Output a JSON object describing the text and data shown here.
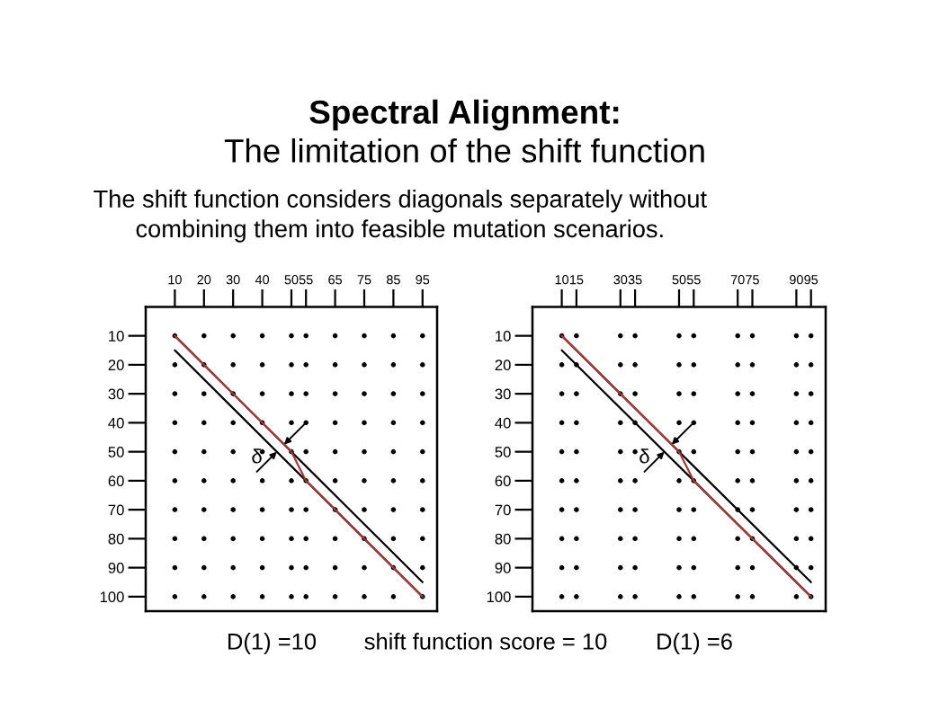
{
  "chart_data": [
    {
      "type": "scatter",
      "title": "Spectral Alignment:",
      "subtitle": "The limitation of the shift function",
      "annotations": [
        "The shift function considers diagonals separately without combining them into feasible mutation scenarios.",
        {
          "text": "δ",
          "x": 45,
          "y": 50
        },
        "D(1) =10",
        "shift function score = 10"
      ],
      "xlim": [
        0,
        100
      ],
      "xticks": [
        10,
        20,
        30,
        40,
        50,
        55,
        65,
        75,
        85,
        95
      ],
      "ylim": [
        105,
        0
      ],
      "yticks": [
        10,
        20,
        30,
        40,
        50,
        60,
        70,
        80,
        90,
        100
      ],
      "series": [
        {
          "color": "#000000",
          "marker": "circle",
          "x": [
            10,
            20,
            30,
            40,
            50,
            55,
            65,
            75,
            85,
            95,
            10,
            20,
            30,
            40,
            50,
            55,
            65,
            75,
            85,
            95,
            10,
            20,
            30,
            40,
            50,
            55,
            65,
            75,
            85,
            95,
            10,
            20,
            30,
            40,
            50,
            55,
            65,
            75,
            85,
            95,
            10,
            20,
            30,
            40,
            50,
            55,
            65,
            75,
            85,
            95,
            10,
            20,
            30,
            40,
            50,
            55,
            65,
            75,
            85,
            95,
            10,
            20,
            30,
            40,
            50,
            55,
            65,
            75,
            85,
            95,
            10,
            20,
            30,
            40,
            50,
            55,
            65,
            75,
            85,
            95,
            10,
            20,
            30,
            40,
            50,
            55,
            65,
            75,
            85,
            95,
            10,
            20,
            30,
            40,
            50,
            55,
            65,
            75,
            85,
            95
          ],
          "values": [
            10,
            10,
            10,
            10,
            10,
            10,
            10,
            10,
            10,
            10,
            20,
            20,
            20,
            20,
            20,
            20,
            20,
            20,
            20,
            20,
            30,
            30,
            30,
            30,
            30,
            30,
            30,
            30,
            30,
            30,
            40,
            40,
            40,
            40,
            40,
            40,
            40,
            40,
            40,
            40,
            50,
            50,
            50,
            50,
            50,
            50,
            50,
            50,
            50,
            50,
            60,
            60,
            60,
            60,
            60,
            60,
            60,
            60,
            60,
            60,
            70,
            70,
            70,
            70,
            70,
            70,
            70,
            70,
            70,
            70,
            80,
            80,
            80,
            80,
            80,
            80,
            80,
            80,
            80,
            80,
            90,
            90,
            90,
            90,
            90,
            90,
            90,
            90,
            90,
            90,
            100,
            100,
            100,
            100,
            100,
            100,
            100,
            100,
            100,
            100
          ]
        },
        {
          "type": "line",
          "color": "#000000",
          "line_style": "solid",
          "x": [
            10,
            95
          ],
          "values": [
            10,
            95
          ]
        },
        {
          "type": "line",
          "color": "#000000",
          "line_style": "solid",
          "x": [
            10,
            95
          ],
          "values": [
            15,
            100
          ]
        },
        {
          "type": "line",
          "color": "#a33a3a",
          "line_style": "solid",
          "x": [
            10,
            50,
            55,
            95
          ],
          "values": [
            10,
            50,
            60,
            100
          ]
        }
      ]
    },
    {
      "type": "scatter",
      "annotations": [
        {
          "text": "δ",
          "x": 45,
          "y": 50
        },
        "D(1) =6"
      ],
      "xlim": [
        0,
        100
      ],
      "xticks": [
        10,
        15,
        30,
        35,
        50,
        55,
        70,
        75,
        90,
        95
      ],
      "ylim": [
        105,
        0
      ],
      "yticks": [
        10,
        20,
        30,
        40,
        50,
        60,
        70,
        80,
        90,
        100
      ],
      "series": [
        {
          "color": "#000000",
          "marker": "circle",
          "x": [
            10,
            15,
            30,
            35,
            50,
            55,
            70,
            75,
            90,
            95,
            10,
            15,
            30,
            35,
            50,
            55,
            70,
            75,
            90,
            95,
            10,
            15,
            30,
            35,
            50,
            55,
            70,
            75,
            90,
            95,
            10,
            15,
            30,
            35,
            50,
            55,
            70,
            75,
            90,
            95,
            10,
            15,
            30,
            35,
            50,
            55,
            70,
            75,
            90,
            95,
            10,
            15,
            30,
            35,
            50,
            55,
            70,
            75,
            90,
            95,
            10,
            15,
            30,
            35,
            50,
            55,
            70,
            75,
            90,
            95,
            10,
            15,
            30,
            35,
            50,
            55,
            70,
            75,
            90,
            95,
            10,
            15,
            30,
            35,
            50,
            55,
            70,
            75,
            90,
            95,
            10,
            15,
            30,
            35,
            50,
            55,
            70,
            75,
            90,
            95
          ],
          "values": [
            10,
            10,
            10,
            10,
            10,
            10,
            10,
            10,
            10,
            10,
            20,
            20,
            20,
            20,
            20,
            20,
            20,
            20,
            20,
            20,
            30,
            30,
            30,
            30,
            30,
            30,
            30,
            30,
            30,
            30,
            40,
            40,
            40,
            40,
            40,
            40,
            40,
            40,
            40,
            40,
            50,
            50,
            50,
            50,
            50,
            50,
            50,
            50,
            50,
            50,
            60,
            60,
            60,
            60,
            60,
            60,
            60,
            60,
            60,
            60,
            70,
            70,
            70,
            70,
            70,
            70,
            70,
            70,
            70,
            70,
            80,
            80,
            80,
            80,
            80,
            80,
            80,
            80,
            80,
            80,
            90,
            90,
            90,
            90,
            90,
            90,
            90,
            90,
            90,
            90,
            100,
            100,
            100,
            100,
            100,
            100,
            100,
            100,
            100,
            100
          ]
        },
        {
          "type": "line",
          "color": "#000000",
          "line_style": "solid",
          "x": [
            10,
            95
          ],
          "values": [
            10,
            95
          ]
        },
        {
          "type": "line",
          "color": "#000000",
          "line_style": "solid",
          "x": [
            10,
            95
          ],
          "values": [
            15,
            100
          ]
        },
        {
          "type": "line",
          "color": "#a33a3a",
          "line_style": "solid",
          "x": [
            10,
            50,
            55,
            95
          ],
          "values": [
            10,
            50,
            60,
            100
          ]
        }
      ]
    }
  ]
}
